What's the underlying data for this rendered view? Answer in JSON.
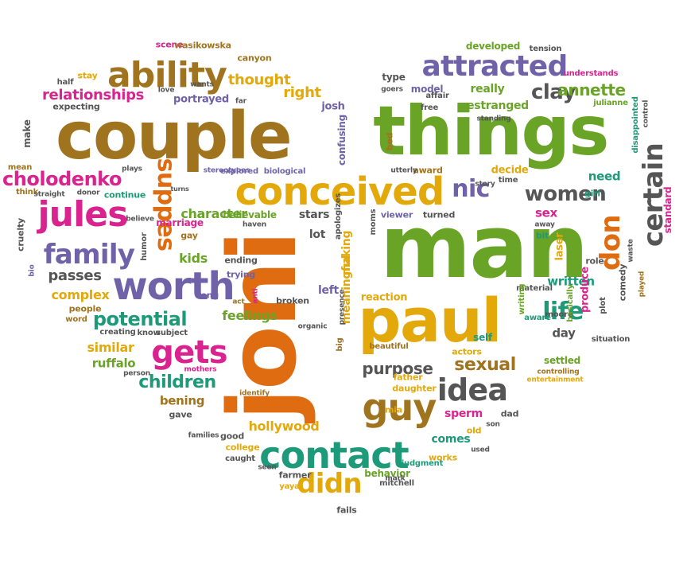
{
  "palette": {
    "brown": "#a0731e",
    "green": "#6aa427",
    "orange": "#e06c12",
    "gold": "#e3a90a",
    "purple": "#6f62a8",
    "magenta": "#d9248f",
    "teal": "#1d9a7a",
    "gray": "#555555"
  },
  "words": [
    {
      "t": "couple",
      "c": "brown"
    },
    {
      "t": "things",
      "c": "green"
    },
    {
      "t": "man",
      "c": "green"
    },
    {
      "t": "joni",
      "c": "orange"
    },
    {
      "t": "paul",
      "c": "gold"
    },
    {
      "t": "conceived",
      "c": "gold"
    },
    {
      "t": "ability",
      "c": "brown"
    },
    {
      "t": "attracted",
      "c": "purple"
    },
    {
      "t": "jules",
      "c": "magenta"
    },
    {
      "t": "worth",
      "c": "purple"
    },
    {
      "t": "family",
      "c": "purple"
    },
    {
      "t": "gets",
      "c": "magenta"
    },
    {
      "t": "contact",
      "c": "teal"
    },
    {
      "t": "guy",
      "c": "brown"
    },
    {
      "t": "idea",
      "c": "gray"
    },
    {
      "t": "didn",
      "c": "gold"
    },
    {
      "t": "certain",
      "c": "gray"
    },
    {
      "t": "don",
      "c": "orange"
    },
    {
      "t": "life",
      "c": "teal"
    },
    {
      "t": "women",
      "c": "gray"
    },
    {
      "t": "nic",
      "c": "purple"
    },
    {
      "t": "clay",
      "c": "gray"
    },
    {
      "t": "annette",
      "c": "green"
    },
    {
      "t": "cholodenko",
      "c": "magenta"
    },
    {
      "t": "children",
      "c": "teal"
    },
    {
      "t": "potential",
      "c": "teal"
    },
    {
      "t": "purpose",
      "c": "gray"
    },
    {
      "t": "sexual",
      "c": "brown"
    },
    {
      "t": "relationships",
      "c": "magenta"
    },
    {
      "t": "thought",
      "c": "gold"
    },
    {
      "t": "right",
      "c": "gold"
    },
    {
      "t": "character",
      "c": "green"
    },
    {
      "t": "meaningful",
      "c": "gold"
    },
    {
      "t": "making",
      "c": "gold"
    },
    {
      "t": "hollywood",
      "c": "gold"
    },
    {
      "t": "passes",
      "c": "gray"
    },
    {
      "t": "complex",
      "c": "gold"
    },
    {
      "t": "kids",
      "c": "green"
    },
    {
      "t": "feelings",
      "c": "green"
    },
    {
      "t": "similar",
      "c": "gold"
    },
    {
      "t": "ruffalo",
      "c": "green"
    },
    {
      "t": "bening",
      "c": "brown"
    },
    {
      "t": "stars",
      "c": "gray"
    },
    {
      "t": "lot",
      "c": "gray"
    },
    {
      "t": "left",
      "c": "purple"
    },
    {
      "t": "day",
      "c": "gray"
    },
    {
      "t": "sex",
      "c": "magenta"
    },
    {
      "t": "written",
      "c": "teal"
    },
    {
      "t": "laser",
      "c": "gold"
    },
    {
      "t": "produce",
      "c": "magenta"
    },
    {
      "t": "sperm",
      "c": "magenta"
    },
    {
      "t": "comes",
      "c": "teal"
    },
    {
      "t": "reaction",
      "c": "gold"
    },
    {
      "t": "need",
      "c": "teal"
    },
    {
      "t": "decide",
      "c": "gold"
    },
    {
      "t": "estranged",
      "c": "green"
    },
    {
      "t": "really",
      "c": "green"
    },
    {
      "t": "developed",
      "c": "green"
    },
    {
      "t": "standard",
      "c": "magenta"
    },
    {
      "t": "suppes",
      "c": "orange"
    },
    {
      "t": "marriage",
      "c": "magenta"
    },
    {
      "t": "believable",
      "c": "green"
    },
    {
      "t": "scene",
      "c": "magenta"
    },
    {
      "t": "wasikowska",
      "c": "brown"
    },
    {
      "t": "stay",
      "c": "gold"
    },
    {
      "t": "canyon",
      "c": "brown"
    },
    {
      "t": "portrayed",
      "c": "purple"
    },
    {
      "t": "josh",
      "c": "purple"
    },
    {
      "t": "model",
      "c": "purple"
    },
    {
      "t": "type",
      "c": "gray"
    },
    {
      "t": "make",
      "c": "gray"
    },
    {
      "t": "expecting",
      "c": "gray"
    },
    {
      "t": "continue",
      "c": "teal"
    },
    {
      "t": "explored",
      "c": "purple"
    },
    {
      "t": "biological",
      "c": "purple"
    },
    {
      "t": "viewer",
      "c": "purple"
    },
    {
      "t": "turned",
      "c": "gray"
    },
    {
      "t": "bit",
      "c": "teal"
    },
    {
      "t": "girl",
      "c": "teal"
    },
    {
      "t": "role",
      "c": "gray"
    },
    {
      "t": "gay",
      "c": "brown"
    },
    {
      "t": "ending",
      "c": "gray"
    },
    {
      "t": "trying",
      "c": "purple"
    },
    {
      "t": "long",
      "c": "purple"
    },
    {
      "t": "broken",
      "c": "gray"
    },
    {
      "t": "people",
      "c": "brown"
    },
    {
      "t": "word",
      "c": "brown"
    },
    {
      "t": "creating",
      "c": "gray"
    },
    {
      "t": "know",
      "c": "gray"
    },
    {
      "t": "subject",
      "c": "gray"
    },
    {
      "t": "good",
      "c": "gray"
    },
    {
      "t": "college",
      "c": "gold"
    },
    {
      "t": "caught",
      "c": "gray"
    },
    {
      "t": "farmer",
      "c": "gray"
    },
    {
      "t": "behavior",
      "c": "green"
    },
    {
      "t": "works",
      "c": "gold"
    },
    {
      "t": "old",
      "c": "gold"
    },
    {
      "t": "dad",
      "c": "gray"
    },
    {
      "t": "settled",
      "c": "green"
    },
    {
      "t": "self",
      "c": "teal"
    },
    {
      "t": "actors",
      "c": "gold"
    },
    {
      "t": "father",
      "c": "gold"
    },
    {
      "t": "daughter",
      "c": "gold"
    },
    {
      "t": "mia",
      "c": "gold"
    },
    {
      "t": "gave",
      "c": "gray"
    },
    {
      "t": "yaya",
      "c": "gold"
    },
    {
      "t": "fails",
      "c": "gray"
    },
    {
      "t": "mitchell",
      "c": "gray"
    },
    {
      "t": "judgment",
      "c": "teal"
    },
    {
      "t": "cruelty",
      "c": "gray"
    },
    {
      "t": "mean",
      "c": "brown"
    },
    {
      "t": "think",
      "c": "brown"
    },
    {
      "t": "half",
      "c": "gray"
    },
    {
      "t": "tension",
      "c": "gray"
    },
    {
      "t": "understands",
      "c": "magenta"
    },
    {
      "t": "julianne",
      "c": "green"
    },
    {
      "t": "disappointed",
      "c": "teal"
    },
    {
      "t": "comedy",
      "c": "gray"
    },
    {
      "t": "waste",
      "c": "gray"
    },
    {
      "t": "played",
      "c": "brown"
    },
    {
      "t": "moore",
      "c": "gray"
    },
    {
      "t": "material",
      "c": "gray"
    },
    {
      "t": "writing",
      "c": "green"
    },
    {
      "t": "basically",
      "c": "green"
    },
    {
      "t": "plot",
      "c": "gray"
    },
    {
      "t": "situation",
      "c": "gray"
    },
    {
      "t": "controlling",
      "c": "brown"
    },
    {
      "t": "entertainment",
      "c": "gold"
    },
    {
      "t": "aware",
      "c": "teal"
    },
    {
      "t": "apologizes",
      "c": "gray"
    },
    {
      "t": "confusing",
      "c": "purple"
    },
    {
      "t": "bed",
      "c": "brown"
    },
    {
      "t": "award",
      "c": "brown"
    },
    {
      "t": "time",
      "c": "gray"
    },
    {
      "t": "free",
      "c": "gray"
    },
    {
      "t": "affair",
      "c": "gray"
    },
    {
      "t": "love",
      "c": "gray"
    },
    {
      "t": "wants",
      "c": "gray"
    },
    {
      "t": "far",
      "c": "gray"
    },
    {
      "t": "stereotypes",
      "c": "purple"
    },
    {
      "t": "big",
      "c": "brown"
    },
    {
      "t": "beautiful",
      "c": "brown"
    },
    {
      "t": "mothers",
      "c": "magenta"
    },
    {
      "t": "identify",
      "c": "brown"
    },
    {
      "t": "act",
      "c": "brown"
    },
    {
      "t": "anti",
      "c": "magenta"
    },
    {
      "t": "humor",
      "c": "gray"
    },
    {
      "t": "plays",
      "c": "gray"
    },
    {
      "t": "believe",
      "c": "gray"
    },
    {
      "t": "donor",
      "c": "gray"
    },
    {
      "t": "straight",
      "c": "gray"
    },
    {
      "t": "haven",
      "c": "gray"
    },
    {
      "t": "organic",
      "c": "gray"
    },
    {
      "t": "seen",
      "c": "gray"
    },
    {
      "t": "mark",
      "c": "gray"
    },
    {
      "t": "used",
      "c": "gray"
    },
    {
      "t": "son",
      "c": "gray"
    },
    {
      "t": "families",
      "c": "gray"
    },
    {
      "t": "person",
      "c": "gray"
    },
    {
      "t": "presence",
      "c": "gray"
    },
    {
      "t": "away",
      "c": "gray"
    },
    {
      "t": "goers",
      "c": "gray"
    },
    {
      "t": "utterly",
      "c": "gray"
    },
    {
      "t": "standing",
      "c": "gray"
    },
    {
      "t": "story",
      "c": "gray"
    },
    {
      "t": "control",
      "c": "gray"
    },
    {
      "t": "bio",
      "c": "purple"
    },
    {
      "t": "moms",
      "c": "gray"
    },
    {
      "t": "turns",
      "c": "gray"
    }
  ]
}
